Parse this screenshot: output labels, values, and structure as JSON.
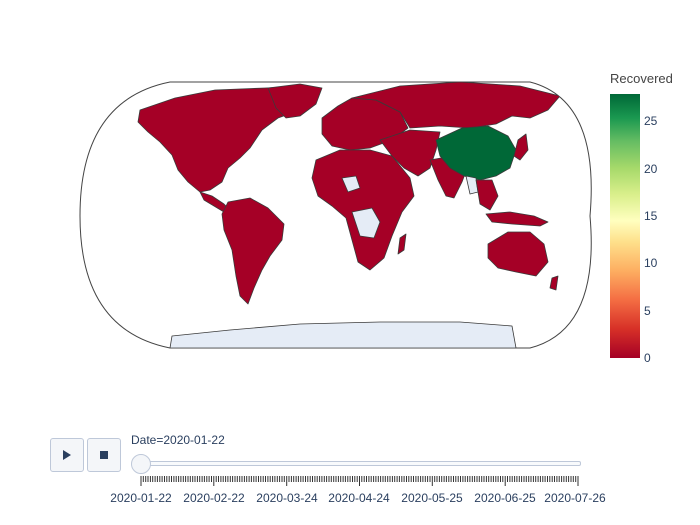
{
  "colorbar": {
    "title": "Recovered",
    "ticks": [
      "25",
      "20",
      "15",
      "10",
      "5",
      "0"
    ],
    "colors": [
      "#a50026",
      "#f46d43",
      "#fee08b",
      "#ffffbf",
      "#a6d96a",
      "#006837"
    ]
  },
  "map": {
    "projection": "natural earth",
    "highlight_country": "China",
    "highlight_value": 28,
    "default_value": 0,
    "no_data_regions": [
      "Antarctica",
      "Greenland",
      "Myanmar",
      "Central African region",
      "Sahara region"
    ],
    "fill_zero": "#a50026",
    "fill_max": "#006837",
    "fill_missing": "#e5ecf6"
  },
  "slider": {
    "current_label": "Date=2020-01-22",
    "value": "2020-01-22",
    "tick_labels": [
      "2020-01-22",
      "2020-02-22",
      "2020-03-24",
      "2020-04-24",
      "2020-05-25",
      "2020-06-25",
      "2020-07-26"
    ]
  },
  "controls": {
    "play_icon": "play-icon",
    "stop_icon": "stop-icon"
  }
}
